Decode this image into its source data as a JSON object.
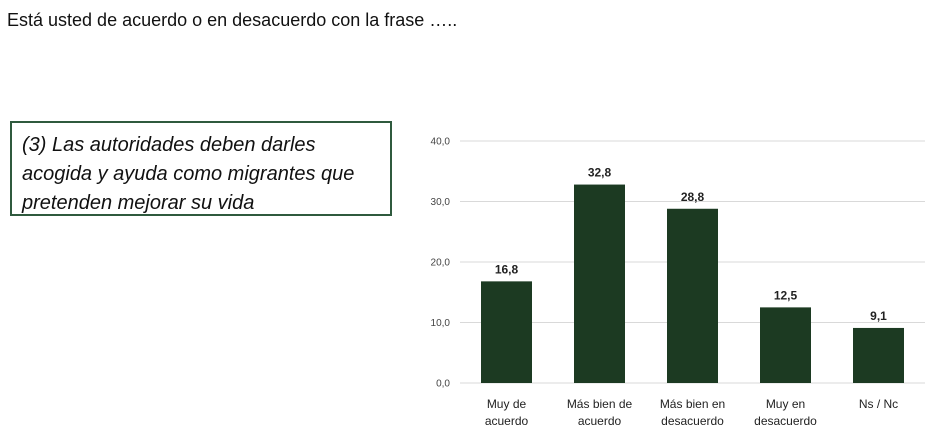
{
  "heading": "Está usted de acuerdo o en desacuerdo con la frase …..",
  "statement": {
    "lines": [
      "(3) Las autoridades deben darles",
      "acogida y ayuda como migrantes que",
      "pretenden mejorar su vida"
    ]
  },
  "chart_data": {
    "type": "bar",
    "categories": [
      [
        "Muy de",
        "acuerdo"
      ],
      [
        "Más bien de",
        "acuerdo"
      ],
      [
        "Más bien en",
        "desacuerdo"
      ],
      [
        "Muy en",
        "desacuerdo"
      ],
      [
        "Ns / Nc"
      ]
    ],
    "values": [
      16.8,
      32.8,
      28.8,
      12.5,
      9.1
    ],
    "value_labels": [
      "16,8",
      "32,8",
      "28,8",
      "12,5",
      "9,1"
    ],
    "yticks": [
      0,
      10,
      20,
      30,
      40
    ],
    "ytick_labels": [
      "0,0",
      "10,0",
      "20,0",
      "30,0",
      "40,0"
    ],
    "ylim": [
      0,
      40
    ],
    "grid": true,
    "bar_color": "#1c3a22",
    "grid_color": "#d9d9d9"
  }
}
